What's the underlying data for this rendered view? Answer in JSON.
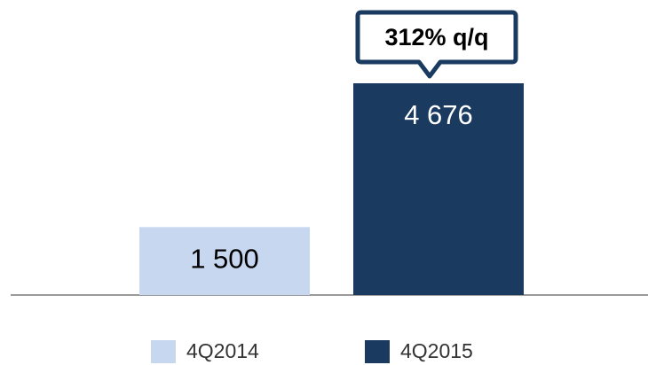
{
  "chart_data": {
    "type": "bar",
    "series": [
      {
        "name": "4Q2014",
        "color": "#c6d7ef",
        "values": [
          1500
        ],
        "value_labels": [
          "1 500"
        ],
        "label_color": "#000000"
      },
      {
        "name": "4Q2015",
        "color": "#1a3a60",
        "values": [
          4676
        ],
        "value_labels": [
          "4 676"
        ],
        "label_color": "#ffffff"
      }
    ],
    "annotation": "312% q/q"
  }
}
